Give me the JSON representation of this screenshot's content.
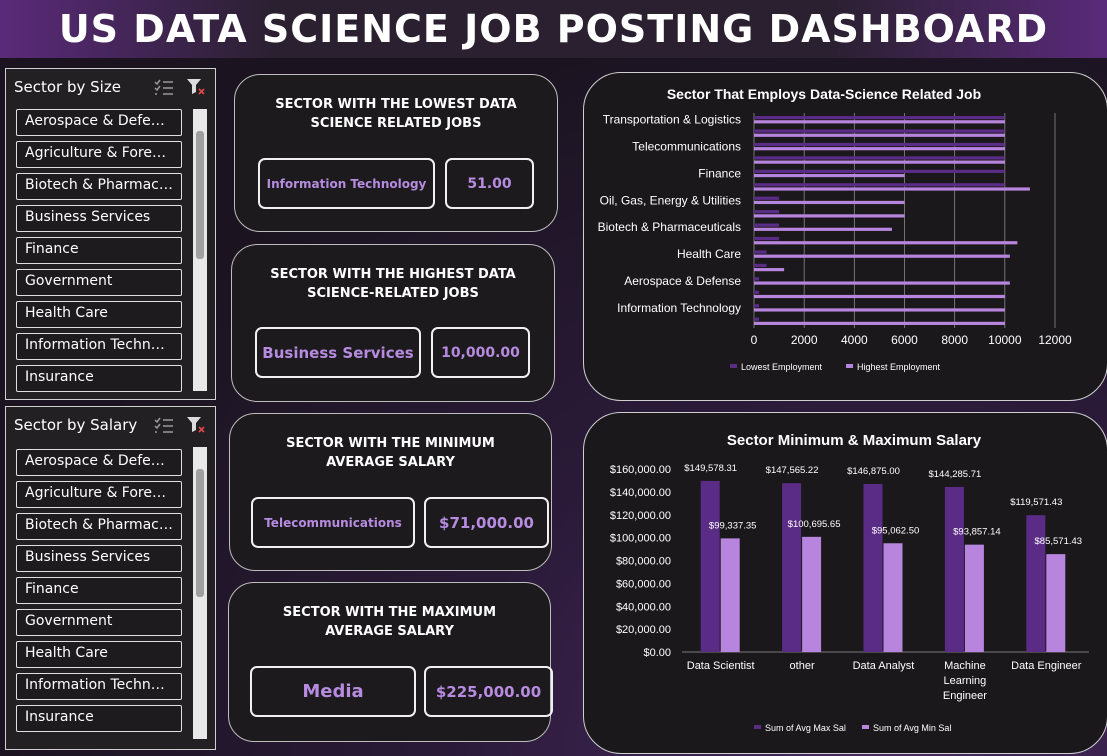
{
  "title": "US DATA SCIENCE JOB POSTING DASHBOARD",
  "colors": {
    "accent": "#b68be0",
    "dark_bar": "#5b2c86",
    "light_bar": "#b885de"
  },
  "slicer_size": {
    "label": "Sector by Size",
    "items": [
      "Aerospace & Defense",
      "Agriculture & Forestry",
      "Biotech & Pharmaceut...",
      "Business Services",
      "Finance",
      "Government",
      "Health Care",
      "Information Technology",
      "Insurance"
    ]
  },
  "slicer_salary": {
    "label": "Sector by Salary",
    "items": [
      "Aerospace & Defense",
      "Agriculture & Forestry",
      "Biotech & Pharmaceut...",
      "Business Services",
      "Finance",
      "Government",
      "Health Care",
      "Information Technology",
      "Insurance"
    ]
  },
  "cards": {
    "lowest": {
      "title_l1": "SECTOR WITH THE LOWEST DATA",
      "title_l2": "SCIENCE RELATED JOBS",
      "sector": "Information Technology",
      "value": "51.00"
    },
    "highest": {
      "title_l1": "SECTOR WITH THE HIGHEST DATA",
      "title_l2": "SCIENCE-RELATED JOBS",
      "sector": "Business Services",
      "value": "10,000.00"
    },
    "min_salary": {
      "title_l1": "SECTOR WITH THE MINIMUM",
      "title_l2": "AVERAGE SALARY",
      "sector": "Telecommunications",
      "value": "$71,000.00"
    },
    "max_salary": {
      "title_l1": "SECTOR WITH THE MAXIMUM",
      "title_l2": "AVERAGE SALARY",
      "sector": "Media",
      "value": "$225,000.00"
    }
  },
  "chart_data": [
    {
      "type": "bar",
      "orientation": "horizontal",
      "title": "Sector That Employs Data-Science Related Job",
      "category_labels": [
        "Transportation & Logistics",
        "Telecommunications",
        "Finance",
        "Oil, Gas, Energy & Utilities",
        "Biotech & Pharmaceuticals",
        "Health Care",
        "Aerospace & Defense",
        "Information Technology"
      ],
      "rows_per_label": 2,
      "xlim": [
        0,
        12000
      ],
      "xticks": [
        "0",
        "2000",
        "4000",
        "6000",
        "8000",
        "10000",
        "12000"
      ],
      "grid": true,
      "legend_position": "bottom",
      "series": [
        {
          "name": "Lowest Employment",
          "values": [
            10000,
            10000,
            10000,
            10000,
            10000,
            10000,
            1000,
            1000,
            1000,
            1000,
            500,
            500,
            200,
            200,
            200,
            200
          ]
        },
        {
          "name": "Highest Employment",
          "values": [
            10000,
            10000,
            10000,
            10000,
            6000,
            11000,
            6000,
            6000,
            5500,
            10500,
            10200,
            1200,
            10200,
            10000,
            10000,
            10000
          ]
        }
      ]
    },
    {
      "type": "bar",
      "title": "Sector Minimum & Maximum Salary",
      "categories": [
        "Data Scientist",
        "other",
        "Data Analyst",
        "Machine Learning Engineer",
        "Data Engineer"
      ],
      "ylim": [
        0,
        160000
      ],
      "yticks": [
        "$0.00",
        "$20,000.00",
        "$40,000.00",
        "$60,000.00",
        "$80,000.00",
        "$100,000.00",
        "$120,000.00",
        "$140,000.00",
        "$160,000.00"
      ],
      "legend_position": "bottom",
      "series": [
        {
          "name": "Sum of Avg Max Sal",
          "values": [
            149578.31,
            147565.22,
            146875.0,
            144285.71,
            119571.43
          ],
          "labels": [
            "$149,578.31",
            "$147,565.22",
            "$146,875.00",
            "$144,285.71",
            "$119,571.43"
          ]
        },
        {
          "name": "Sum of Avg Min Sal",
          "values": [
            99337.35,
            100695.65,
            95062.5,
            93857.14,
            85571.43
          ],
          "labels": [
            "$99,337.35",
            "$100,695.65",
            "$95,062.50",
            "$93,857.14",
            "$85,571.43"
          ]
        }
      ]
    }
  ]
}
